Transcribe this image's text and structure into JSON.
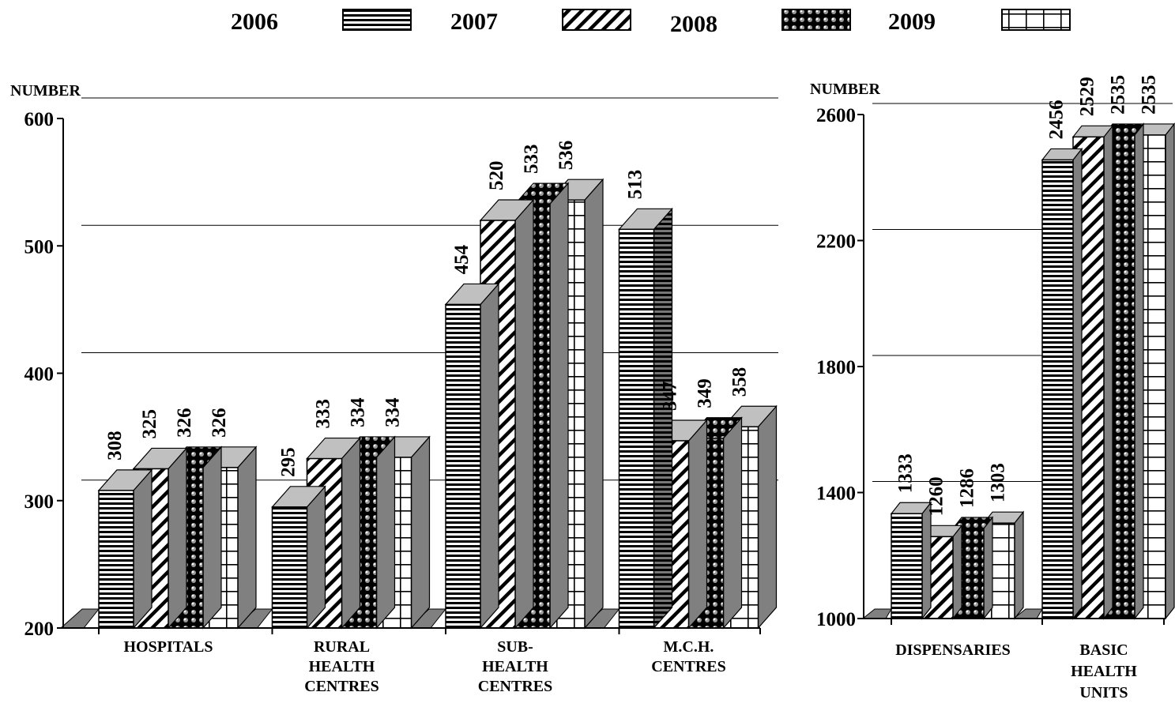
{
  "legend": [
    {
      "name": "2006",
      "pattern": "horizontal-lines"
    },
    {
      "name": "2007",
      "pattern": "diagonal-hatch"
    },
    {
      "name": "2008",
      "pattern": "dots"
    },
    {
      "name": "2009",
      "pattern": "grid"
    }
  ],
  "colors": {
    "side_face": "#808080",
    "top_face": "#c0c0c0",
    "background": "#ffffff",
    "ink": "#000000"
  },
  "chart_data": [
    {
      "type": "bar",
      "ylabel": "NUMBER",
      "ylim": [
        200,
        600
      ],
      "yticks": [
        "200",
        "300",
        "400",
        "500",
        "600"
      ],
      "categories": [
        [
          "HOSPITALS"
        ],
        [
          "RURAL",
          "HEALTH",
          "CENTRES"
        ],
        [
          "SUB-",
          "HEALTH",
          "CENTRES"
        ],
        [
          "M.C.H.",
          "CENTRES"
        ]
      ],
      "series": [
        {
          "name": "2006",
          "values": [
            308,
            295,
            454,
            513
          ]
        },
        {
          "name": "2007",
          "values": [
            325,
            333,
            520,
            347
          ]
        },
        {
          "name": "2008",
          "values": [
            326,
            334,
            533,
            349
          ]
        },
        {
          "name": "2009",
          "values": [
            326,
            334,
            536,
            358
          ]
        }
      ]
    },
    {
      "type": "bar",
      "ylabel": "NUMBER",
      "ylim": [
        1000,
        2600
      ],
      "yticks": [
        "1000",
        "1400",
        "1800",
        "2200",
        "2600"
      ],
      "categories": [
        [
          "DISPENSARIES"
        ],
        [
          "BASIC",
          "HEALTH",
          "UNITS"
        ]
      ],
      "series": [
        {
          "name": "2006",
          "values": [
            1333,
            2456
          ]
        },
        {
          "name": "2007",
          "values": [
            1260,
            2529
          ]
        },
        {
          "name": "2008",
          "values": [
            1286,
            2535
          ]
        },
        {
          "name": "2009",
          "values": [
            1303,
            2535
          ]
        }
      ]
    }
  ]
}
